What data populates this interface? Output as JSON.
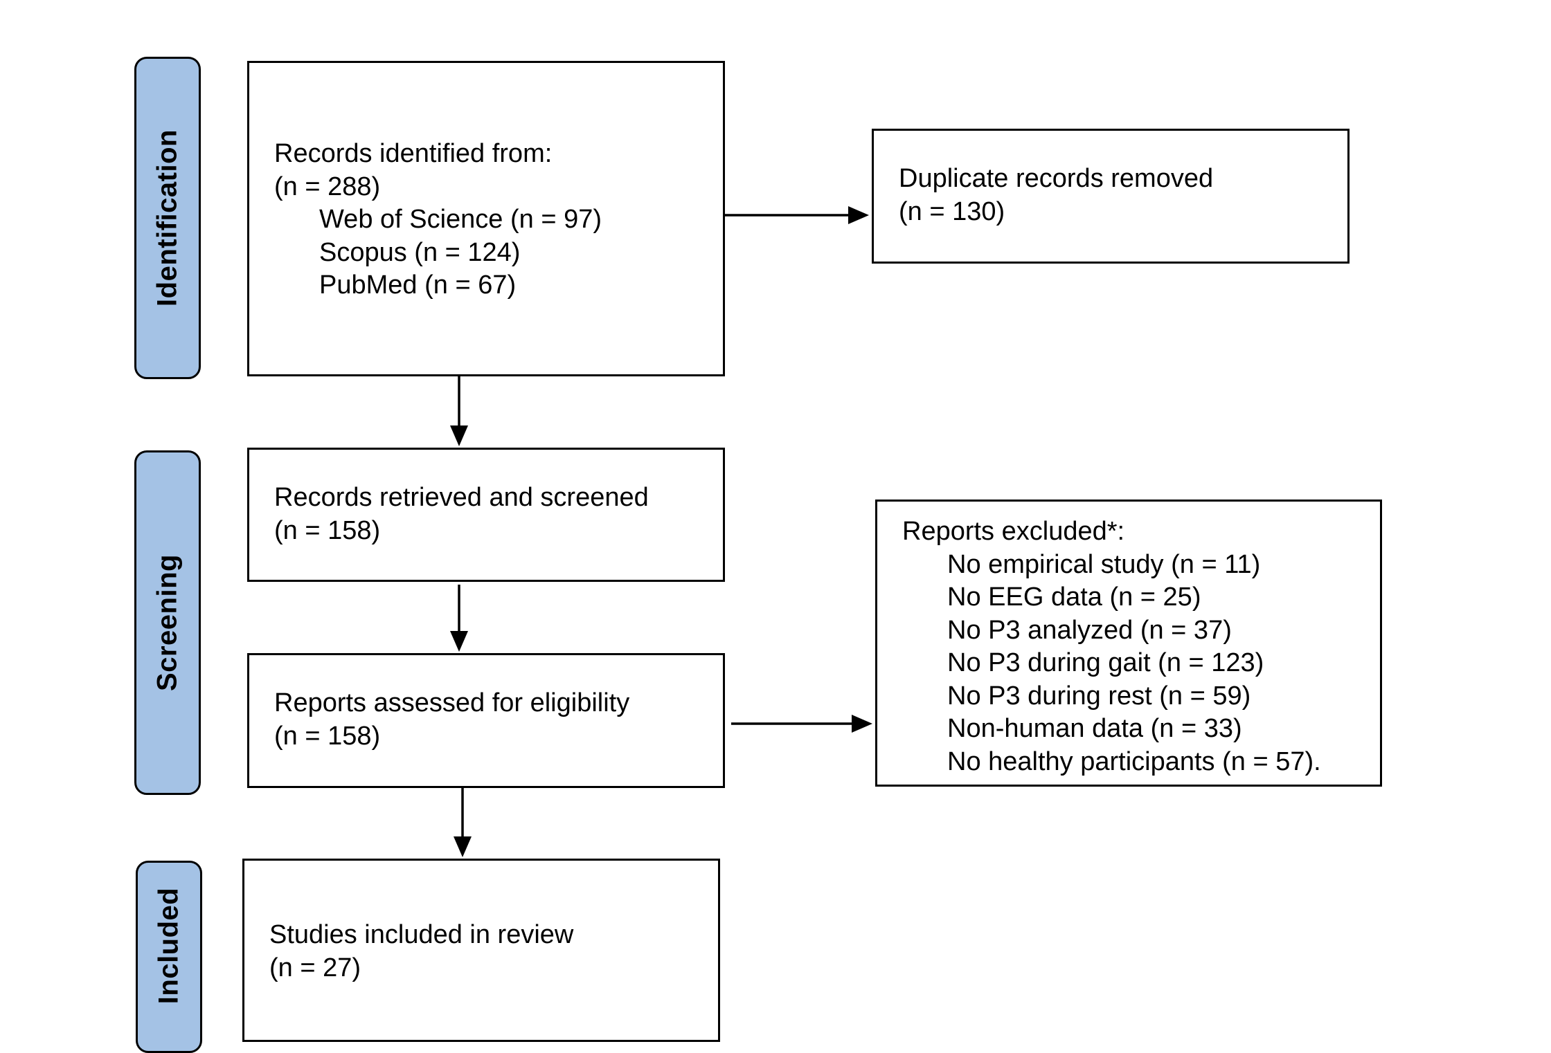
{
  "stages": {
    "identification": "Identification",
    "screening": "Screening",
    "included": "Included"
  },
  "identified": {
    "title": "Records identified from:",
    "count": "(n = 288)",
    "sources": [
      "Web of Science (n = 97)",
      "Scopus (n = 124)",
      "PubMed (n = 67)"
    ]
  },
  "duplicates": {
    "title": "Duplicate records removed",
    "count": "(n = 130)"
  },
  "screened": {
    "title": "Records retrieved and screened",
    "count": "(n = 158)"
  },
  "assessed": {
    "title": "Reports assessed for eligibility",
    "count": "(n = 158)"
  },
  "excluded": {
    "title": "Reports excluded*:",
    "reasons": [
      "No empirical study (n = 11)",
      "No EEG data (n = 25)",
      "No P3 analyzed (n = 37)",
      "No P3 during gait (n = 123)",
      "No P3 during rest (n = 59)",
      "Non-human data (n = 33)",
      "No healthy participants (n = 57)."
    ]
  },
  "included": {
    "title": "Studies included in review",
    "count": "(n = 27)"
  }
}
